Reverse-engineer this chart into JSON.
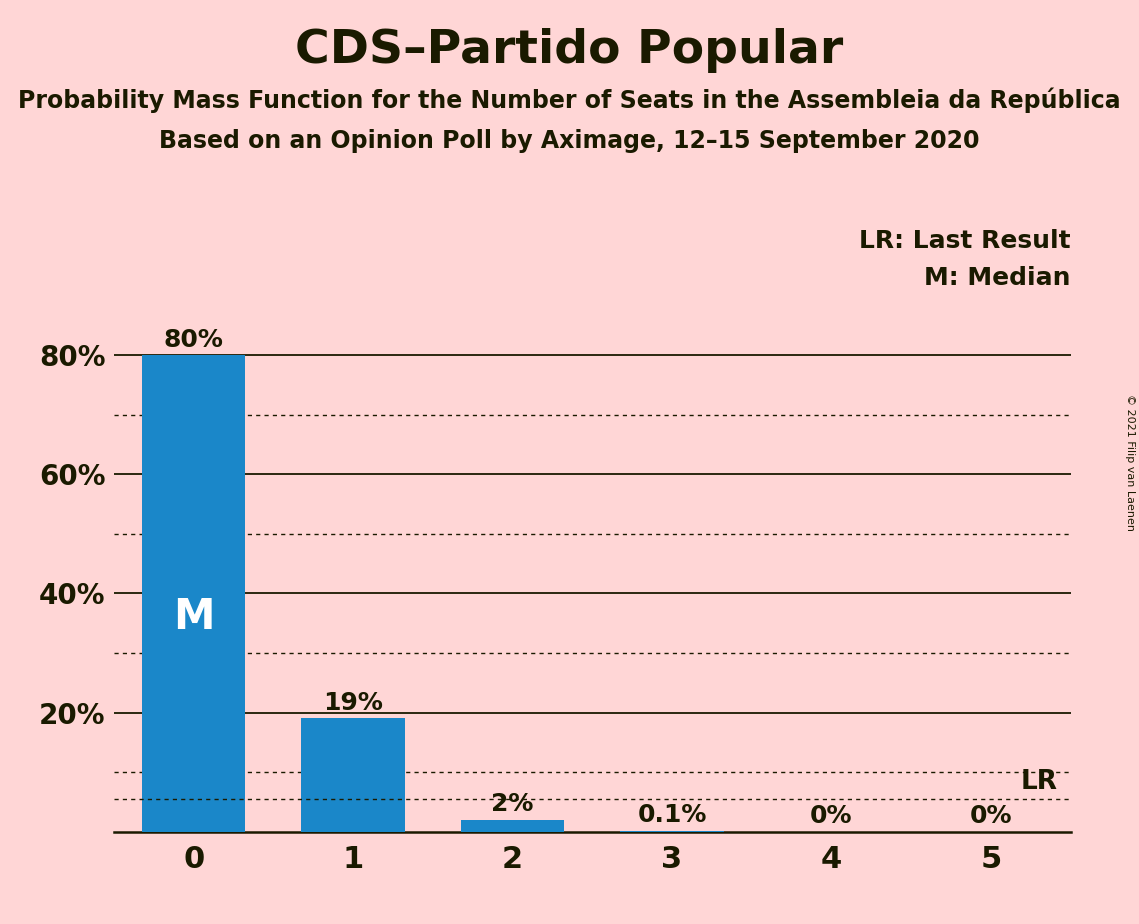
{
  "title": "CDS–Partido Popular",
  "subtitle1": "Probability Mass Function for the Number of Seats in the Assembleia da República",
  "subtitle2": "Based on an Opinion Poll by Aximage, 12–15 September 2020",
  "copyright": "© 2021 Filip van Laenen",
  "categories": [
    0,
    1,
    2,
    3,
    4,
    5
  ],
  "values": [
    0.8,
    0.19,
    0.02,
    0.001,
    0.0,
    0.0
  ],
  "value_labels": [
    "80%",
    "19%",
    "2%",
    "0.1%",
    "0%",
    "0%"
  ],
  "bar_color": "#1a87c9",
  "background_color": "#ffd6d6",
  "title_color": "#1a1a00",
  "median_bar_index": 0,
  "median_label": "M",
  "lr_value": 0.055,
  "lr_label": "LR",
  "legend_lr": "LR: Last Result",
  "legend_m": "M: Median",
  "ylim": [
    0,
    0.9
  ],
  "yticks": [
    0.2,
    0.4,
    0.6,
    0.8
  ],
  "ytick_labels": [
    "20%",
    "40%",
    "60%",
    "80%"
  ],
  "dotted_lines": [
    0.1,
    0.3,
    0.5,
    0.7
  ],
  "solid_lines": [
    0.2,
    0.4,
    0.6,
    0.8
  ],
  "bar_width": 0.65
}
